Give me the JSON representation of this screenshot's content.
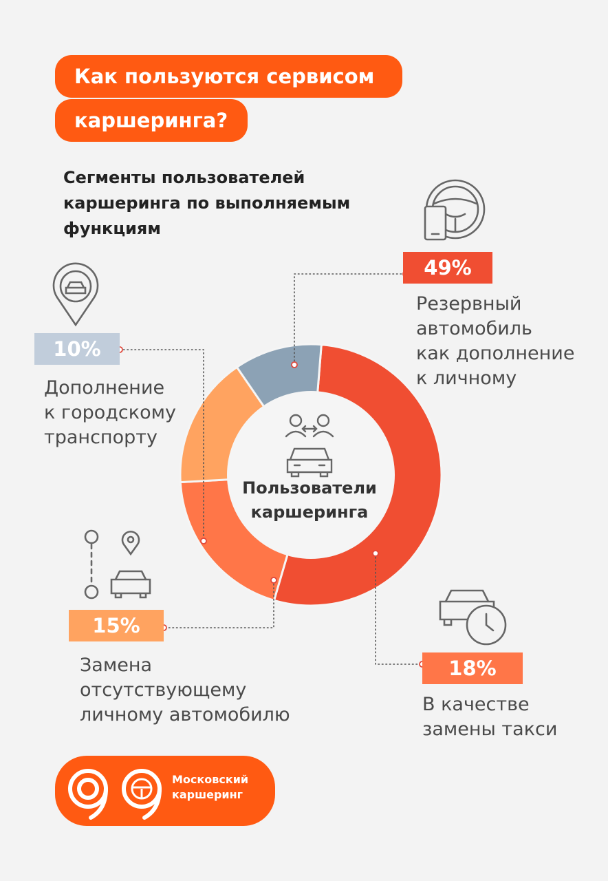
{
  "header": {
    "title_line1": "Как пользуются сервисом",
    "title_line2": "каршеринга?",
    "subtitle_lines": [
      "Сегменты пользователей",
      "каршеринга по выполняемым",
      "функциям"
    ]
  },
  "center": {
    "line1": "Пользователи",
    "line2": "каршеринга"
  },
  "chart_data": {
    "type": "pie",
    "subtype": "donut",
    "title": "Сегменты пользователей каршеринга по выполняемым функциям",
    "center_label": "Пользователи каршеринга",
    "segments": [
      {
        "label": "Резервный автомобиль как дополнение к личному",
        "value": 49,
        "display": "49%",
        "color": "#f04e32"
      },
      {
        "label": "В качестве замены такси",
        "value": 18,
        "display": "18%",
        "color": "#ff7648"
      },
      {
        "label": "Замена отсутствующему личному автомобилю",
        "value": 15,
        "display": "15%",
        "color": "#ffa360"
      },
      {
        "label": "Дополнение к городскому транспорту",
        "value": 10,
        "display": "10%",
        "color": "#8ca2b5"
      }
    ]
  },
  "callouts": {
    "s49": {
      "pct": "49%",
      "lines": [
        "Резервный",
        "автомобиль",
        "как дополнение",
        "к личному"
      ],
      "color": "#f04e32"
    },
    "s10": {
      "pct": "10%",
      "lines": [
        "Дополнение",
        "к городскому",
        "транспорту"
      ],
      "color": "#c1cddb"
    },
    "s15": {
      "pct": "15%",
      "lines": [
        "Замена",
        "отсутствующему",
        "личному автомобилю"
      ],
      "color": "#ffa360"
    },
    "s18": {
      "pct": "18%",
      "lines": [
        "В качестве",
        "замены такси"
      ],
      "color": "#ff7648"
    }
  },
  "logo": {
    "line1": "Московский",
    "line2": "каршеринг"
  },
  "icons": {
    "s49": "steering-wheel-phone-icon",
    "s10": "location-car-icon",
    "s15": "route-car-icon",
    "s18": "car-clock-icon",
    "center": "users-car-icon"
  }
}
